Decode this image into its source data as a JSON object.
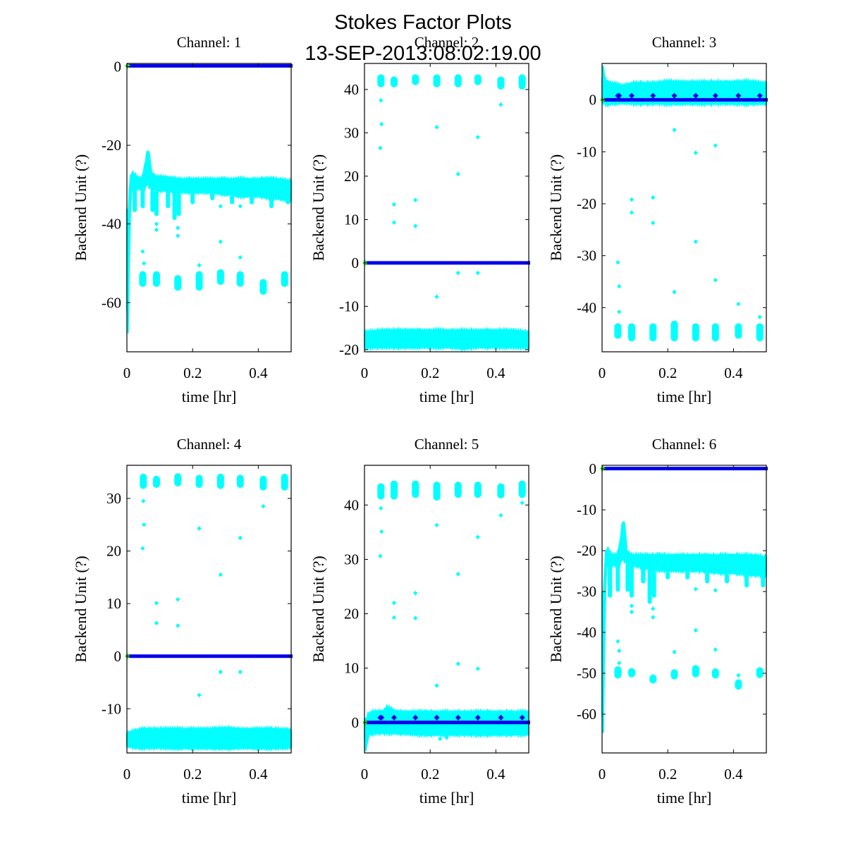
{
  "title": "Stokes Factor Plots",
  "subtitle": "13-SEP-2013:08:02:19.00",
  "colors": {
    "band": "#00ffff",
    "line": "#0000ee",
    "start": "#33dd33",
    "axis": "#000000"
  },
  "chart_data": [
    {
      "type": "scatter",
      "title": "Channel: 1",
      "xlabel": "time [hr]",
      "ylabel": "Backend Unit (?)",
      "xlim": [
        0,
        0.5
      ],
      "ylim": [
        -72.5,
        0.8
      ],
      "xticks": [
        0,
        0.2,
        0.4
      ],
      "xtick_labels": [
        "0",
        "0.2",
        "0.4"
      ],
      "yticks": [
        0,
        -20,
        -40,
        -60
      ],
      "ytick_labels": [
        "0",
        "-20",
        "-40",
        "-60"
      ],
      "blue_line_value": 0.2,
      "blue_markers": [],
      "band": {
        "x": [
          0,
          0.004,
          0.008,
          0.012,
          0.02,
          0.03,
          0.045,
          0.055,
          0.06,
          0.065,
          0.07,
          0.075,
          0.09,
          0.12,
          0.15,
          0.2,
          0.25,
          0.3,
          0.35,
          0.4,
          0.45,
          0.5
        ],
        "upper": [
          -36,
          -40,
          -30,
          -27,
          -27,
          -28,
          -28.5,
          -25,
          -22,
          -21,
          -23,
          -27,
          -28,
          -28,
          -28.5,
          -28.5,
          -28.5,
          -28.5,
          -28.5,
          -28.5,
          -28.5,
          -29
        ],
        "lower": [
          -62,
          -68,
          -45,
          -32,
          -31,
          -31,
          -31,
          -31,
          -30,
          -30,
          -31,
          -31,
          -31.5,
          -31.5,
          -32,
          -32,
          -32,
          -32.5,
          -33,
          -33,
          -33.5,
          -34
        ]
      },
      "dips": [
        [
          0.024,
          -37
        ],
        [
          0.048,
          -36
        ],
        [
          0.078,
          -37
        ],
        [
          0.09,
          -38
        ],
        [
          0.125,
          -36
        ],
        [
          0.145,
          -39
        ],
        [
          0.158,
          -38
        ],
        [
          0.2,
          -35
        ],
        [
          0.26,
          -34
        ],
        [
          0.32,
          -35
        ],
        [
          0.38,
          -35
        ],
        [
          0.44,
          -36
        ],
        [
          0.49,
          -35
        ]
      ],
      "clusters": [
        [
          0.048,
          -52,
          -56
        ],
        [
          0.09,
          -52,
          -56
        ],
        [
          0.155,
          -53,
          -57
        ],
        [
          0.22,
          -52,
          -57
        ],
        [
          0.285,
          -51.5,
          -55.5
        ],
        [
          0.345,
          -52,
          -56
        ],
        [
          0.415,
          -54,
          -58
        ],
        [
          0.48,
          -52,
          -56
        ]
      ],
      "points": [
        [
          0.09,
          -40
        ],
        [
          0.09,
          -41.5
        ],
        [
          0.155,
          -41
        ],
        [
          0.155,
          -43
        ],
        [
          0.048,
          -47
        ],
        [
          0.052,
          -50
        ],
        [
          0.22,
          -50.5
        ],
        [
          0.285,
          -35.5
        ],
        [
          0.285,
          -44.5
        ],
        [
          0.345,
          -35.5
        ],
        [
          0.345,
          -48.5
        ]
      ]
    },
    {
      "type": "scatter",
      "title": "Channel: 2",
      "xlabel": "time [hr]",
      "ylabel": "Backend Unit (?)",
      "xlim": [
        0,
        0.5
      ],
      "ylim": [
        -20.5,
        46
      ],
      "xticks": [
        0,
        0.2,
        0.4
      ],
      "xtick_labels": [
        "0",
        "0.2",
        "0.4"
      ],
      "yticks": [
        40,
        30,
        20,
        10,
        0,
        -10,
        -20
      ],
      "ytick_labels": [
        "40",
        "30",
        "20",
        "10",
        "0",
        "-10",
        "-20"
      ],
      "blue_line_value": 0,
      "blue_markers": [],
      "band": {
        "x": [
          0,
          0.05,
          0.1,
          0.15,
          0.2,
          0.25,
          0.3,
          0.35,
          0.4,
          0.45,
          0.5
        ],
        "upper": [
          -16,
          -15.5,
          -15.5,
          -15.5,
          -15.5,
          -15.5,
          -15.5,
          -15.5,
          -15.5,
          -15.5,
          -16
        ],
        "lower": [
          -19.5,
          -19.5,
          -19.5,
          -19.5,
          -19.5,
          -19.5,
          -19.8,
          -19.5,
          -19.5,
          -19.5,
          -19.5
        ]
      },
      "dips": [],
      "clusters": [
        [
          0.05,
          40.5,
          43.5
        ],
        [
          0.09,
          40.5,
          43
        ],
        [
          0.155,
          41,
          43.5
        ],
        [
          0.22,
          40.5,
          43.5
        ],
        [
          0.285,
          40.5,
          43.5
        ],
        [
          0.345,
          41,
          43.5
        ],
        [
          0.415,
          40,
          43
        ],
        [
          0.48,
          40,
          43.5
        ]
      ],
      "points": [
        [
          0.048,
          26.5
        ],
        [
          0.052,
          32
        ],
        [
          0.05,
          37.5
        ],
        [
          0.09,
          13.5
        ],
        [
          0.155,
          14.5
        ],
        [
          0.22,
          31.3
        ],
        [
          0.285,
          20.5
        ],
        [
          0.345,
          29
        ],
        [
          0.415,
          36.5
        ],
        [
          0.09,
          9.3
        ],
        [
          0.155,
          8.5
        ],
        [
          0.285,
          -2.3
        ],
        [
          0.345,
          -2.3
        ],
        [
          0.22,
          -7.8
        ]
      ]
    },
    {
      "type": "scatter",
      "title": "Channel: 3",
      "xlabel": "time [hr]",
      "ylabel": "Backend Unit (?)",
      "xlim": [
        0,
        0.5
      ],
      "ylim": [
        -48.5,
        7
      ],
      "xticks": [
        0,
        0.2,
        0.4
      ],
      "xtick_labels": [
        "0",
        "0.2",
        "0.4"
      ],
      "yticks": [
        0,
        -10,
        -20,
        -30,
        -40
      ],
      "ytick_labels": [
        "0",
        "-10",
        "-20",
        "-30",
        "-40"
      ],
      "blue_line_value": 0,
      "blue_markers": [
        [
          0.048,
          0.8
        ],
        [
          0.052,
          0.8
        ],
        [
          0.09,
          0.8
        ],
        [
          0.155,
          0.8
        ],
        [
          0.22,
          0.8
        ],
        [
          0.285,
          0.8
        ],
        [
          0.345,
          0.8
        ],
        [
          0.415,
          0.8
        ],
        [
          0.48,
          0.8
        ]
      ],
      "band": {
        "x": [
          0,
          0.004,
          0.008,
          0.012,
          0.03,
          0.06,
          0.1,
          0.15,
          0.2,
          0.25,
          0.3,
          0.35,
          0.4,
          0.45,
          0.5
        ],
        "upper": [
          4,
          6.5,
          4.5,
          3.5,
          3.3,
          2.8,
          3.3,
          3.3,
          3.6,
          3.5,
          3.5,
          3.5,
          3.5,
          3.6,
          3.3
        ],
        "lower": [
          0,
          -0.5,
          -0.5,
          -1,
          -0.8,
          -0.6,
          -0.8,
          -0.8,
          -0.8,
          -0.8,
          -0.8,
          -0.8,
          -0.8,
          -0.8,
          -0.8
        ]
      },
      "dips": [],
      "clusters": [
        [
          0.048,
          -43,
          -46
        ],
        [
          0.09,
          -43,
          -46.5
        ],
        [
          0.155,
          -43,
          -46.5
        ],
        [
          0.22,
          -42.5,
          -46.5
        ],
        [
          0.285,
          -43,
          -46.5
        ],
        [
          0.345,
          -43,
          -46.5
        ],
        [
          0.415,
          -43,
          -46
        ],
        [
          0.48,
          -43,
          -46.5
        ]
      ],
      "points": [
        [
          0.048,
          -31.3
        ],
        [
          0.052,
          -35.9
        ],
        [
          0.052,
          -40.8
        ],
        [
          0.09,
          -19.2
        ],
        [
          0.09,
          -21.7
        ],
        [
          0.155,
          -18.8
        ],
        [
          0.155,
          -23.7
        ],
        [
          0.22,
          -5.8
        ],
        [
          0.22,
          -37
        ],
        [
          0.285,
          -10.2
        ],
        [
          0.285,
          -27.3
        ],
        [
          0.345,
          -8.8
        ],
        [
          0.345,
          -34.7
        ],
        [
          0.415,
          -39.3
        ],
        [
          0.48,
          -41.8
        ]
      ]
    },
    {
      "type": "scatter",
      "title": "Channel: 4",
      "xlabel": "time [hr]",
      "ylabel": "Backend Unit (?)",
      "xlim": [
        0,
        0.5
      ],
      "ylim": [
        -18.4,
        36.3
      ],
      "xticks": [
        0,
        0.2,
        0.4
      ],
      "xtick_labels": [
        "0",
        "0.2",
        "0.4"
      ],
      "yticks": [
        30,
        20,
        10,
        0,
        -10
      ],
      "ytick_labels": [
        "30",
        "20",
        "10",
        "0",
        "-10"
      ],
      "blue_line_value": 0,
      "blue_markers": [],
      "band": {
        "x": [
          0,
          0.05,
          0.1,
          0.15,
          0.2,
          0.25,
          0.3,
          0.35,
          0.4,
          0.45,
          0.5
        ],
        "upper": [
          -14.5,
          -13.8,
          -13.8,
          -13.8,
          -13.8,
          -13.8,
          -13.6,
          -13.8,
          -13.8,
          -13.8,
          -14
        ],
        "lower": [
          -17.2,
          -17.5,
          -17.4,
          -17.5,
          -17.5,
          -17.5,
          -17.6,
          -17.5,
          -17.5,
          -17.5,
          -17.4
        ]
      },
      "dips": [],
      "clusters": [
        [
          0.05,
          31.8,
          34.7
        ],
        [
          0.09,
          32,
          34.3
        ],
        [
          0.155,
          32.3,
          34.8
        ],
        [
          0.22,
          32,
          34.5
        ],
        [
          0.285,
          31.8,
          34.7
        ],
        [
          0.345,
          32,
          34.5
        ],
        [
          0.415,
          31.5,
          34.3
        ],
        [
          0.48,
          31.5,
          34.7
        ]
      ],
      "points": [
        [
          0.05,
          29.5
        ],
        [
          0.052,
          25
        ],
        [
          0.048,
          20.5
        ],
        [
          0.09,
          10.1
        ],
        [
          0.155,
          10.8
        ],
        [
          0.22,
          24.3
        ],
        [
          0.285,
          15.5
        ],
        [
          0.345,
          22.5
        ],
        [
          0.415,
          28.5
        ],
        [
          0.09,
          6.3
        ],
        [
          0.155,
          5.8
        ],
        [
          0.285,
          -3
        ],
        [
          0.345,
          -3
        ],
        [
          0.22,
          -7.4
        ]
      ]
    },
    {
      "type": "scatter",
      "title": "Channel: 5",
      "xlabel": "time [hr]",
      "ylabel": "Backend Unit (?)",
      "xlim": [
        0,
        0.5
      ],
      "ylim": [
        -5.6,
        47.3
      ],
      "xticks": [
        0,
        0.2,
        0.4
      ],
      "xtick_labels": [
        "0",
        "0.2",
        "0.4"
      ],
      "yticks": [
        40,
        30,
        20,
        10,
        0
      ],
      "ytick_labels": [
        "40",
        "30",
        "20",
        "10",
        "0"
      ],
      "blue_line_value": 0,
      "blue_markers": [
        [
          0.048,
          0.9
        ],
        [
          0.052,
          0.9
        ],
        [
          0.09,
          0.9
        ],
        [
          0.155,
          0.9
        ],
        [
          0.22,
          0.9
        ],
        [
          0.285,
          0.9
        ],
        [
          0.345,
          0.9
        ],
        [
          0.415,
          0.9
        ],
        [
          0.48,
          0.9
        ]
      ],
      "band": {
        "x": [
          0,
          0.004,
          0.008,
          0.012,
          0.03,
          0.06,
          0.065,
          0.1,
          0.15,
          0.2,
          0.25,
          0.3,
          0.35,
          0.4,
          0.45,
          0.5
        ],
        "upper": [
          1,
          0.5,
          1,
          1.8,
          2,
          2.2,
          3,
          2,
          2,
          2,
          2,
          2,
          2,
          2,
          2,
          2
        ],
        "lower": [
          -3,
          -5.3,
          -4,
          -2.3,
          -2,
          -2,
          -2,
          -2,
          -2.2,
          -2.3,
          -2.3,
          -2.3,
          -2.3,
          -2.3,
          -2.3,
          -2.2
        ]
      },
      "dips": [],
      "clusters": [
        [
          0.05,
          41,
          44
        ],
        [
          0.09,
          41,
          44.5
        ],
        [
          0.155,
          41.3,
          44.5
        ],
        [
          0.22,
          40.8,
          44.3
        ],
        [
          0.285,
          41.3,
          44.3
        ],
        [
          0.345,
          41.3,
          44.3
        ],
        [
          0.415,
          41.2,
          44
        ],
        [
          0.48,
          41.3,
          44.5
        ]
      ],
      "points": [
        [
          0.05,
          39.4
        ],
        [
          0.052,
          35.1
        ],
        [
          0.048,
          30.6
        ],
        [
          0.09,
          22
        ],
        [
          0.09,
          19.3
        ],
        [
          0.155,
          23.8
        ],
        [
          0.155,
          19.2
        ],
        [
          0.22,
          36.3
        ],
        [
          0.285,
          27.3
        ],
        [
          0.345,
          34.1
        ],
        [
          0.415,
          38.1
        ],
        [
          0.48,
          40.4
        ],
        [
          0.285,
          10.8
        ],
        [
          0.345,
          9.9
        ],
        [
          0.22,
          6.8
        ],
        [
          0.23,
          -3
        ],
        [
          0.25,
          -2.8
        ]
      ]
    },
    {
      "type": "scatter",
      "title": "Channel: 6",
      "xlabel": "time [hr]",
      "ylabel": "Backend Unit (?)",
      "xlim": [
        0,
        0.5
      ],
      "ylim": [
        -69.5,
        0.9
      ],
      "xticks": [
        0,
        0.2,
        0.4
      ],
      "xtick_labels": [
        "0",
        "0.2",
        "0.4"
      ],
      "yticks": [
        0,
        -10,
        -20,
        -30,
        -40,
        -50,
        -60
      ],
      "ytick_labels": [
        "0",
        "-10",
        "-20",
        "-30",
        "-40",
        "-50",
        "-60"
      ],
      "blue_line_value": 0.1,
      "blue_markers": [],
      "band": {
        "x": [
          0,
          0.004,
          0.008,
          0.012,
          0.02,
          0.03,
          0.045,
          0.055,
          0.06,
          0.065,
          0.07,
          0.075,
          0.09,
          0.12,
          0.15,
          0.2,
          0.25,
          0.3,
          0.35,
          0.4,
          0.45,
          0.5
        ],
        "upper": [
          -30,
          -34,
          -23,
          -19.5,
          -19.5,
          -21,
          -21,
          -18,
          -14,
          -12.5,
          -14,
          -20,
          -21,
          -21,
          -21,
          -21,
          -21,
          -21,
          -21,
          -21,
          -21,
          -21.5
        ],
        "lower": [
          -60,
          -65,
          -40,
          -24,
          -23.5,
          -23.5,
          -23.5,
          -23.5,
          -22,
          -22,
          -23,
          -23,
          -23.5,
          -24,
          -24.5,
          -25,
          -25,
          -25,
          -25.5,
          -25.5,
          -26,
          -26
        ]
      },
      "dips": [
        [
          0.024,
          -31.5
        ],
        [
          0.048,
          -30
        ],
        [
          0.078,
          -30
        ],
        [
          0.09,
          -31.5
        ],
        [
          0.125,
          -28
        ],
        [
          0.145,
          -33
        ],
        [
          0.158,
          -31.5
        ],
        [
          0.2,
          -27
        ],
        [
          0.26,
          -27
        ],
        [
          0.32,
          -28
        ],
        [
          0.38,
          -28
        ],
        [
          0.44,
          -29
        ],
        [
          0.49,
          -29
        ]
      ],
      "clusters": [
        [
          0.048,
          -48.3,
          -51.3
        ],
        [
          0.09,
          -48.7,
          -51
        ],
        [
          0.155,
          -50.3,
          -52.5
        ],
        [
          0.22,
          -49,
          -51.5
        ],
        [
          0.285,
          -48,
          -51
        ],
        [
          0.345,
          -48.8,
          -51.3
        ],
        [
          0.415,
          -51.5,
          -54
        ],
        [
          0.48,
          -48.5,
          -51.2
        ]
      ],
      "points": [
        [
          0.09,
          -33.5
        ],
        [
          0.09,
          -35
        ],
        [
          0.155,
          -34.2
        ],
        [
          0.155,
          -36.3
        ],
        [
          0.048,
          -42.2
        ],
        [
          0.052,
          -44.5
        ],
        [
          0.052,
          -47.5
        ],
        [
          0.22,
          -44.8
        ],
        [
          0.285,
          -29.4
        ],
        [
          0.285,
          -39.5
        ],
        [
          0.345,
          -29.7
        ],
        [
          0.345,
          -44.2
        ],
        [
          0.415,
          -50.5
        ]
      ]
    }
  ]
}
